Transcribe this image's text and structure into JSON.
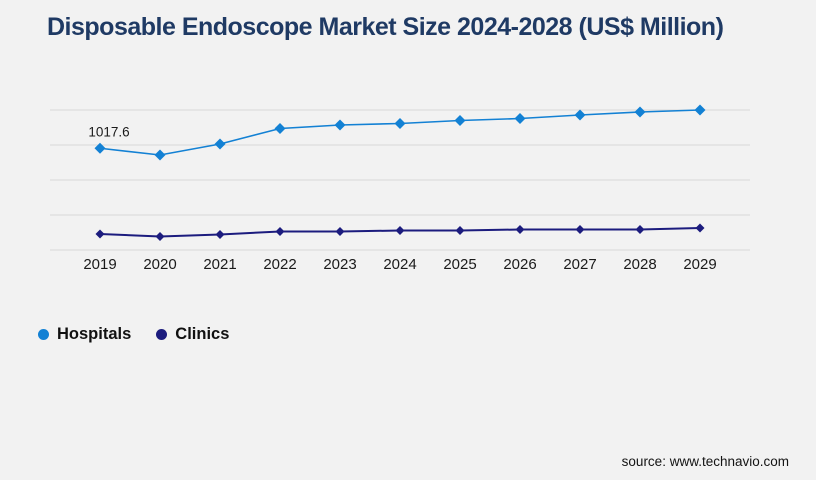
{
  "title": "Disposable Endoscope Market Size 2024-2028 (US$ Million)",
  "source": "source: www.technavio.com",
  "colors": {
    "title": "#1f3a64",
    "background": "#f2f2f2",
    "gridline": "#d8d8d8",
    "hospitals": "#1381d4",
    "clinics": "#1c1c7e",
    "label_text": "#1a1a1a"
  },
  "legend": [
    {
      "label": "Hospitals",
      "color": "#1381d4"
    },
    {
      "label": "Clinics",
      "color": "#1c1c7e"
    }
  ],
  "chart_data": {
    "type": "line",
    "title": "Disposable Endoscope Market Size 2024-2028 (US$ Million)",
    "x": [
      2019,
      2020,
      2021,
      2022,
      2023,
      2024,
      2025,
      2026,
      2027,
      2028,
      2029
    ],
    "series": [
      {
        "name": "Hospitals",
        "color": "#1381d4",
        "values": [
          1017.6,
          950,
          1060,
          1215,
          1250,
          1265,
          1295,
          1315,
          1350,
          1380,
          1400
        ]
      },
      {
        "name": "Clinics",
        "color": "#1c1c7e",
        "values": [
          160,
          135,
          155,
          185,
          185,
          195,
          195,
          205,
          205,
          205,
          220
        ]
      }
    ],
    "annotations": [
      {
        "series": "Hospitals",
        "x": 2019,
        "text": "1017.6"
      }
    ],
    "xlabel": "",
    "ylabel": "",
    "ylim": [
      0,
      1400
    ],
    "grid": true,
    "grid_count": 5,
    "y_axis_labels_shown": false,
    "legend_position": "bottom-left",
    "marker": "diamond"
  }
}
